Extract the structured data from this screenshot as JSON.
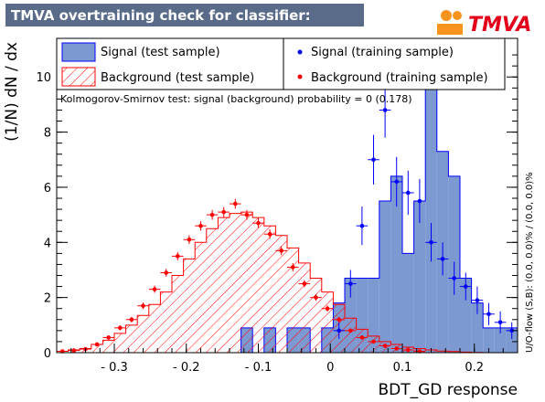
{
  "header": {
    "title": "TMVA overtraining check for classifier: BDT_GD",
    "logo_text": "TMVA",
    "colors": {
      "title_bg": "#5a6b8a",
      "title_fg": "#ffffff",
      "logo_orange": "#f7941d",
      "logo_red": "#e2001a"
    }
  },
  "legend": {
    "items": [
      {
        "label": "Signal (test sample)",
        "kind": "signal-test"
      },
      {
        "label": "Signal (training sample)",
        "kind": "signal-train"
      },
      {
        "label": "Background (test sample)",
        "kind": "background-test"
      },
      {
        "label": "Background (training sample)",
        "kind": "background-train"
      }
    ]
  },
  "ks_text": "Kolmogorov-Smirnov test: signal (background) probability =     0 (0.178)",
  "side_label": "U/O-flow (S,B): (0.0, 0.0)% / (0.0, 0.0)%",
  "chart_data": {
    "type": "bar",
    "title": "TMVA overtraining check for classifier: BDT_GD",
    "xlabel": "BDT_GD response",
    "ylabel": "(1/N) dN / dx",
    "xlim": [
      -0.38,
      0.26
    ],
    "ylim": [
      0,
      11.4
    ],
    "x_ticks": [
      -0.3,
      -0.2,
      -0.1,
      0,
      0.1,
      0.2
    ],
    "x_tick_labels": [
      "- 0.3",
      "- 0.2",
      "- 0.1",
      "0",
      "0.1",
      "0.2"
    ],
    "y_ticks": [
      0,
      2,
      4,
      6,
      8,
      10
    ],
    "y_tick_labels": [
      "0",
      "2",
      "4",
      "6",
      "8",
      "10"
    ],
    "bin_edges_start": -0.38,
    "bin_width": 0.016,
    "series": [
      {
        "name": "Signal (test sample)",
        "style": "filled-histogram",
        "color": "#7d99d1",
        "edge": "#0000ff",
        "values": [
          0,
          0,
          0,
          0,
          0,
          0,
          0,
          0,
          0,
          0,
          0,
          0,
          0,
          0,
          0,
          0,
          0.9,
          0,
          0.9,
          0,
          0.9,
          0.9,
          0,
          0.9,
          1.8,
          2.7,
          2.7,
          2.7,
          5.5,
          6.4,
          3.6,
          5.5,
          10.0,
          7.3,
          6.4,
          2.7,
          1.8,
          0.9,
          0.9,
          0.9
        ]
      },
      {
        "name": "Background (test sample)",
        "style": "hatched-histogram",
        "color": "#ff0000",
        "values": [
          0.05,
          0.1,
          0.15,
          0.3,
          0.45,
          0.7,
          1.0,
          1.35,
          1.75,
          2.2,
          2.8,
          3.4,
          4.0,
          4.5,
          4.9,
          5.05,
          5.1,
          4.9,
          4.6,
          4.25,
          3.8,
          3.25,
          2.7,
          2.2,
          1.75,
          1.25,
          0.85,
          0.6,
          0.4,
          0.3,
          0.2,
          0.15,
          0.1,
          0.06,
          0.04,
          0.02,
          0.01,
          0.0,
          0.0,
          0.0
        ]
      },
      {
        "name": "Signal (training sample)",
        "style": "points",
        "color": "#0000ff",
        "points": [
          {
            "x": 0.012,
            "y": 0.8,
            "err": 0.3
          },
          {
            "x": 0.028,
            "y": 2.5,
            "err": 0.5
          },
          {
            "x": 0.044,
            "y": 4.6,
            "err": 0.7
          },
          {
            "x": 0.06,
            "y": 7.0,
            "err": 0.9
          },
          {
            "x": 0.076,
            "y": 8.8,
            "err": 1.0
          },
          {
            "x": 0.092,
            "y": 6.2,
            "err": 0.9
          },
          {
            "x": 0.108,
            "y": 5.8,
            "err": 0.8
          },
          {
            "x": 0.124,
            "y": 5.5,
            "err": 0.8
          },
          {
            "x": 0.14,
            "y": 4.0,
            "err": 0.7
          },
          {
            "x": 0.156,
            "y": 3.4,
            "err": 0.6
          },
          {
            "x": 0.172,
            "y": 2.7,
            "err": 0.6
          },
          {
            "x": 0.188,
            "y": 2.4,
            "err": 0.5
          },
          {
            "x": 0.204,
            "y": 1.9,
            "err": 0.5
          },
          {
            "x": 0.22,
            "y": 1.4,
            "err": 0.4
          },
          {
            "x": 0.236,
            "y": 1.1,
            "err": 0.4
          },
          {
            "x": 0.252,
            "y": 0.8,
            "err": 0.3
          }
        ]
      },
      {
        "name": "Background (training sample)",
        "style": "points",
        "color": "#ff0000",
        "points": [
          {
            "x": -0.372,
            "y": 0.05,
            "err": 0.03
          },
          {
            "x": -0.356,
            "y": 0.08,
            "err": 0.04
          },
          {
            "x": -0.34,
            "y": 0.13,
            "err": 0.05
          },
          {
            "x": -0.324,
            "y": 0.3,
            "err": 0.06
          },
          {
            "x": -0.308,
            "y": 0.55,
            "err": 0.08
          },
          {
            "x": -0.292,
            "y": 0.9,
            "err": 0.09
          },
          {
            "x": -0.276,
            "y": 1.2,
            "err": 0.1
          },
          {
            "x": -0.26,
            "y": 1.7,
            "err": 0.12
          },
          {
            "x": -0.244,
            "y": 2.3,
            "err": 0.13
          },
          {
            "x": -0.228,
            "y": 2.9,
            "err": 0.14
          },
          {
            "x": -0.212,
            "y": 3.5,
            "err": 0.15
          },
          {
            "x": -0.196,
            "y": 4.1,
            "err": 0.16
          },
          {
            "x": -0.18,
            "y": 4.6,
            "err": 0.17
          },
          {
            "x": -0.164,
            "y": 5.0,
            "err": 0.18
          },
          {
            "x": -0.148,
            "y": 5.1,
            "err": 0.18
          },
          {
            "x": -0.132,
            "y": 5.4,
            "err": 0.18
          },
          {
            "x": -0.116,
            "y": 5.0,
            "err": 0.18
          },
          {
            "x": -0.1,
            "y": 4.7,
            "err": 0.17
          },
          {
            "x": -0.084,
            "y": 4.3,
            "err": 0.17
          },
          {
            "x": -0.068,
            "y": 3.7,
            "err": 0.16
          },
          {
            "x": -0.052,
            "y": 3.1,
            "err": 0.15
          },
          {
            "x": -0.036,
            "y": 2.5,
            "err": 0.13
          },
          {
            "x": -0.02,
            "y": 2.0,
            "err": 0.12
          },
          {
            "x": -0.004,
            "y": 1.6,
            "err": 0.11
          },
          {
            "x": 0.012,
            "y": 1.2,
            "err": 0.1
          },
          {
            "x": 0.028,
            "y": 0.8,
            "err": 0.08
          },
          {
            "x": 0.044,
            "y": 0.55,
            "err": 0.07
          },
          {
            "x": 0.06,
            "y": 0.4,
            "err": 0.06
          },
          {
            "x": 0.076,
            "y": 0.25,
            "err": 0.05
          },
          {
            "x": 0.092,
            "y": 0.15,
            "err": 0.04
          },
          {
            "x": 0.108,
            "y": 0.1,
            "err": 0.03
          },
          {
            "x": 0.124,
            "y": 0.05,
            "err": 0.02
          }
        ]
      }
    ],
    "grid": false,
    "legend_position": "top"
  }
}
